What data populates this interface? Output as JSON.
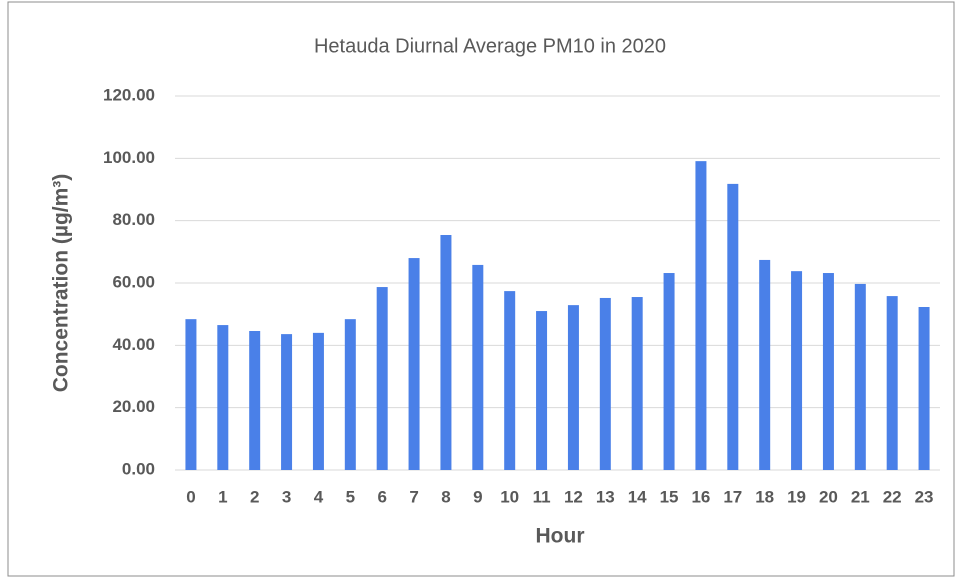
{
  "chart_data": {
    "type": "bar",
    "title": "Hetauda Diurnal Average PM10 in 2020",
    "x_label": "Hour",
    "y_label": "Concentration (µg/m³)",
    "categories": [
      "0",
      "1",
      "2",
      "3",
      "4",
      "5",
      "6",
      "7",
      "8",
      "9",
      "10",
      "11",
      "12",
      "13",
      "14",
      "15",
      "16",
      "17",
      "18",
      "19",
      "20",
      "21",
      "22",
      "23"
    ],
    "values": [
      48.4,
      46.5,
      44.6,
      43.6,
      44.0,
      48.4,
      58.7,
      68.0,
      75.4,
      65.8,
      57.4,
      51.0,
      52.9,
      55.2,
      55.5,
      63.2,
      99.1,
      91.8,
      67.4,
      63.8,
      63.2,
      59.7,
      55.8,
      52.3
    ],
    "color": "#4a80e8",
    "ylim": [
      0,
      120
    ],
    "yticks": [
      {
        "value": 0,
        "label": "0.00"
      },
      {
        "value": 20,
        "label": "20.00"
      },
      {
        "value": 40,
        "label": "40.00"
      },
      {
        "value": 60,
        "label": "60.00"
      },
      {
        "value": 80,
        "label": "80.00"
      },
      {
        "value": 100,
        "label": "100.00"
      },
      {
        "value": 120,
        "label": "120.00"
      }
    ],
    "grid": true
  }
}
